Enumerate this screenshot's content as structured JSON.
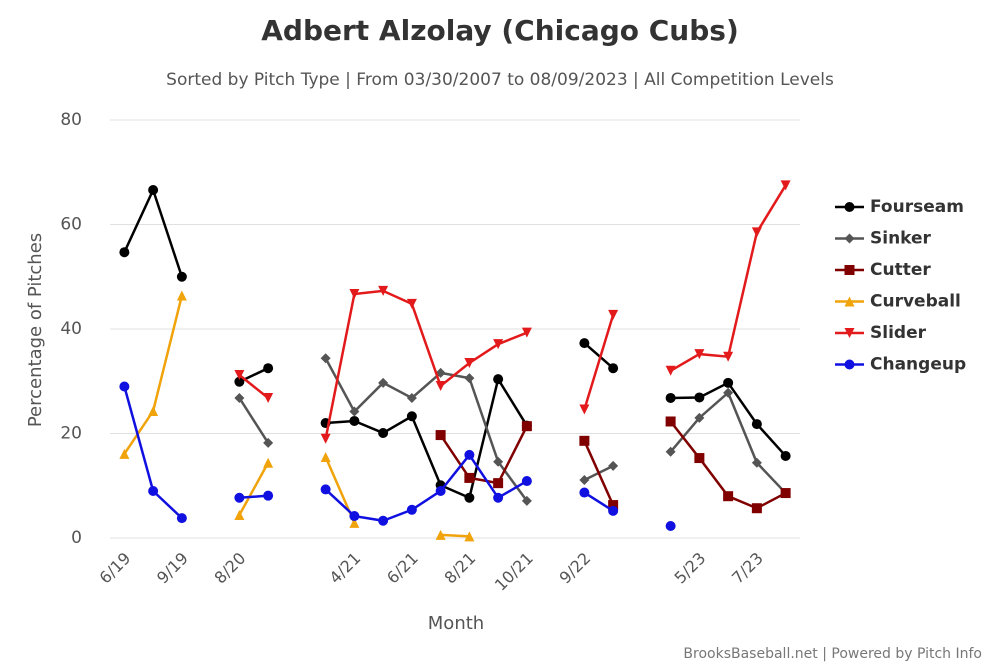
{
  "chart_data": {
    "type": "line",
    "title": "Adbert Alzolay (Chicago Cubs)",
    "subtitle": "Sorted by Pitch Type | From 03/30/2007 to 08/09/2023 | All Competition Levels",
    "x_label": "Month",
    "y_label": "Percentage of Pitches",
    "credit": "BrooksBaseball.net | Powered by Pitch Info",
    "categories": [
      "6/19",
      null,
      "9/19",
      null,
      "8/20",
      null,
      null,
      null,
      "4/21",
      null,
      "6/21",
      null,
      "8/21",
      null,
      "10/21",
      null,
      "9/22",
      null,
      null,
      null,
      "5/23",
      null,
      "7/23",
      null
    ],
    "ylim": [
      0,
      80
    ],
    "yticks": [
      0,
      20,
      40,
      60,
      80
    ],
    "grid": true,
    "legend": "right",
    "series": [
      {
        "name": "Fourseam",
        "color": "#000000",
        "marker": "circle",
        "values": [
          54.7,
          66.6,
          50.0,
          null,
          29.9,
          32.5,
          null,
          22.0,
          22.4,
          20.1,
          23.3,
          10.1,
          7.7,
          30.4,
          21.5,
          null,
          37.3,
          32.5,
          null,
          26.8,
          26.9,
          29.7,
          21.8,
          15.7
        ]
      },
      {
        "name": "Sinker",
        "color": "#555555",
        "marker": "diamond",
        "values": [
          null,
          null,
          null,
          null,
          26.8,
          18.2,
          null,
          34.4,
          24.2,
          29.7,
          26.8,
          31.6,
          30.6,
          14.6,
          7.1,
          null,
          11.1,
          13.8,
          null,
          16.5,
          23.0,
          27.8,
          14.4,
          8.6
        ]
      },
      {
        "name": "Cutter",
        "color": "#800000",
        "marker": "square",
        "values": [
          null,
          null,
          null,
          null,
          null,
          null,
          null,
          null,
          null,
          null,
          null,
          19.7,
          11.5,
          10.5,
          21.4,
          null,
          18.6,
          6.3,
          null,
          22.3,
          15.3,
          8.0,
          5.7,
          8.6
        ]
      },
      {
        "name": "Curveball",
        "color": "#f0a30a",
        "marker": "triangle",
        "values": [
          16.1,
          24.3,
          46.4,
          null,
          4.4,
          14.4,
          null,
          15.5,
          2.9,
          null,
          null,
          0.6,
          0.3,
          null,
          null,
          null,
          null,
          null,
          null,
          null,
          null,
          null,
          null,
          null
        ]
      },
      {
        "name": "Slider",
        "color": "#e31a1c",
        "marker": "triangle-down",
        "values": [
          null,
          null,
          null,
          null,
          31.2,
          26.8,
          null,
          19.0,
          46.7,
          47.3,
          44.8,
          29.1,
          33.5,
          37.1,
          39.3,
          null,
          24.6,
          42.7,
          null,
          32.0,
          35.2,
          34.7,
          58.5,
          67.5
        ]
      },
      {
        "name": "Changeup",
        "color": "#1010e0",
        "marker": "circle",
        "values": [
          29.0,
          9.0,
          3.8,
          null,
          7.7,
          8.1,
          null,
          9.3,
          4.2,
          3.3,
          5.4,
          9.0,
          15.9,
          7.7,
          10.9,
          null,
          8.7,
          5.2,
          null,
          2.3,
          null,
          null,
          null,
          null
        ]
      }
    ]
  }
}
